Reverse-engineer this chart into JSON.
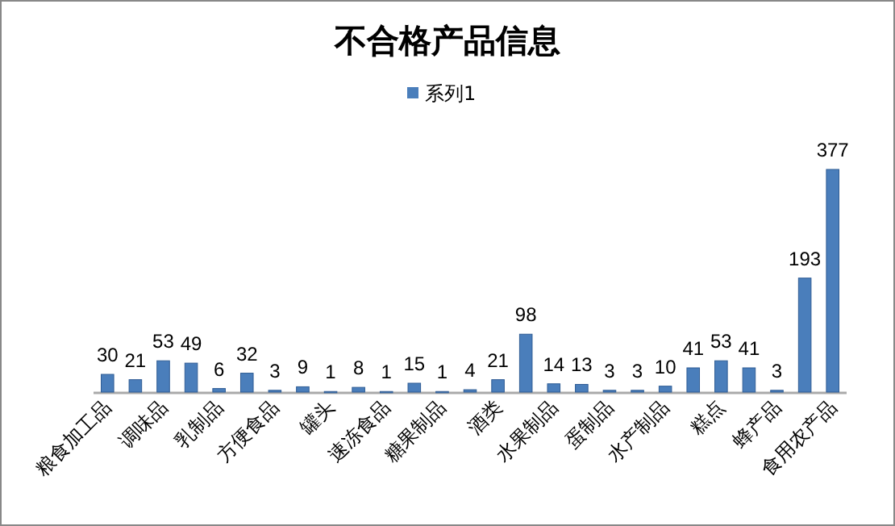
{
  "chart_data": {
    "type": "bar",
    "title": "不合格产品信息",
    "categories": [
      "粮食加工品",
      null,
      "调味品",
      null,
      "乳制品",
      null,
      "方便食品",
      null,
      "罐头",
      null,
      "速冻食品",
      null,
      "糖果制品",
      null,
      "酒类",
      null,
      "水果制品",
      null,
      "蛋制品",
      null,
      "水产制品",
      null,
      "糕点",
      null,
      "蜂产品",
      null,
      "食用农产品"
    ],
    "series": [
      {
        "name": "系列1",
        "color": "#4a7ebb",
        "values": [
          30,
          21,
          53,
          49,
          6,
          32,
          3,
          9,
          1,
          8,
          1,
          15,
          1,
          4,
          21,
          98,
          14,
          13,
          3,
          3,
          10,
          41,
          53,
          41,
          3,
          193,
          377
        ]
      }
    ],
    "data_labels": true,
    "legend": "top",
    "grid": false
  }
}
